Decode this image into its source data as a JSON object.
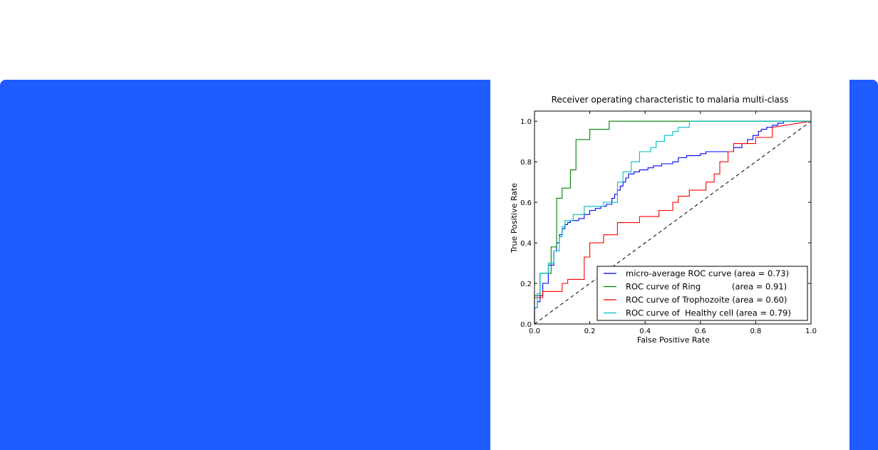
{
  "chart_data": {
    "type": "line",
    "title": "Receiver operating characteristic to malaria multi-class",
    "xlabel": "False Positive Rate",
    "ylabel": "True Positive Rate",
    "xlim": [
      0.0,
      1.0
    ],
    "ylim": [
      0.0,
      1.05
    ],
    "xticks": [
      "0.0",
      "0.2",
      "0.4",
      "0.6",
      "0.8",
      "1.0"
    ],
    "yticks": [
      "0.0",
      "0.2",
      "0.4",
      "0.6",
      "0.8",
      "1.0"
    ],
    "legend_position": "lower-right",
    "series": [
      {
        "name": "micro-average ROC curve (area = 0.73)",
        "color": "#0000ff",
        "x": [
          0.0,
          0.0,
          0.01,
          0.01,
          0.02,
          0.02,
          0.03,
          0.03,
          0.05,
          0.05,
          0.07,
          0.07,
          0.08,
          0.08,
          0.09,
          0.09,
          0.1,
          0.1,
          0.11,
          0.11,
          0.12,
          0.12,
          0.13,
          0.13,
          0.16,
          0.16,
          0.18,
          0.18,
          0.2,
          0.2,
          0.22,
          0.22,
          0.24,
          0.24,
          0.26,
          0.26,
          0.28,
          0.28,
          0.29,
          0.29,
          0.3,
          0.3,
          0.31,
          0.31,
          0.32,
          0.32,
          0.33,
          0.33,
          0.34,
          0.34,
          0.36,
          0.36,
          0.38,
          0.38,
          0.41,
          0.41,
          0.43,
          0.43,
          0.46,
          0.46,
          0.5,
          0.5,
          0.52,
          0.52,
          0.55,
          0.55,
          0.6,
          0.6,
          0.62,
          0.62,
          0.72,
          0.72,
          0.75,
          0.75,
          0.77,
          0.77,
          0.79,
          0.79,
          0.81,
          0.81,
          0.82,
          0.82,
          0.84,
          0.84,
          0.86,
          0.86,
          0.88,
          0.88,
          0.9,
          0.9,
          0.94,
          0.94,
          1.0
        ],
        "y": [
          0.0,
          0.08,
          0.08,
          0.11,
          0.11,
          0.14,
          0.14,
          0.2,
          0.2,
          0.29,
          0.29,
          0.36,
          0.36,
          0.4,
          0.4,
          0.44,
          0.44,
          0.47,
          0.47,
          0.49,
          0.49,
          0.5,
          0.5,
          0.51,
          0.51,
          0.52,
          0.52,
          0.54,
          0.54,
          0.56,
          0.56,
          0.57,
          0.57,
          0.58,
          0.58,
          0.59,
          0.59,
          0.62,
          0.62,
          0.64,
          0.64,
          0.66,
          0.66,
          0.68,
          0.68,
          0.7,
          0.7,
          0.72,
          0.72,
          0.74,
          0.74,
          0.75,
          0.75,
          0.76,
          0.76,
          0.77,
          0.77,
          0.78,
          0.78,
          0.79,
          0.79,
          0.8,
          0.8,
          0.82,
          0.82,
          0.83,
          0.83,
          0.84,
          0.84,
          0.85,
          0.85,
          0.87,
          0.87,
          0.89,
          0.89,
          0.91,
          0.91,
          0.93,
          0.93,
          0.95,
          0.95,
          0.96,
          0.96,
          0.97,
          0.97,
          0.98,
          0.98,
          0.99,
          0.99,
          1.0,
          1.0,
          1.0,
          1.0
        ]
      },
      {
        "name": "ROC curve of Ring            (area = 0.91)",
        "color": "#008000",
        "x": [
          0.0,
          0.0,
          0.02,
          0.02,
          0.06,
          0.06,
          0.08,
          0.08,
          0.1,
          0.1,
          0.13,
          0.13,
          0.15,
          0.15,
          0.2,
          0.2,
          0.27,
          0.27,
          1.0
        ],
        "y": [
          0.0,
          0.14,
          0.14,
          0.25,
          0.25,
          0.38,
          0.38,
          0.62,
          0.62,
          0.67,
          0.67,
          0.76,
          0.76,
          0.91,
          0.91,
          0.96,
          0.96,
          1.0,
          1.0
        ]
      },
      {
        "name": "ROC curve of Trophozoite (area = 0.60)",
        "color": "#ff0000",
        "x": [
          0.0,
          0.0,
          0.03,
          0.03,
          0.1,
          0.1,
          0.12,
          0.12,
          0.18,
          0.18,
          0.2,
          0.2,
          0.25,
          0.25,
          0.3,
          0.3,
          0.38,
          0.38,
          0.45,
          0.45,
          0.5,
          0.5,
          0.52,
          0.52,
          0.56,
          0.56,
          0.62,
          0.62,
          0.65,
          0.65,
          0.67,
          0.67,
          0.7,
          0.7,
          0.72,
          0.72,
          0.8,
          0.8,
          0.86,
          0.86,
          1.0
        ],
        "y": [
          0.0,
          0.13,
          0.13,
          0.16,
          0.16,
          0.2,
          0.2,
          0.22,
          0.22,
          0.33,
          0.33,
          0.4,
          0.4,
          0.44,
          0.44,
          0.5,
          0.5,
          0.53,
          0.53,
          0.56,
          0.56,
          0.6,
          0.6,
          0.63,
          0.63,
          0.66,
          0.66,
          0.7,
          0.7,
          0.74,
          0.74,
          0.8,
          0.8,
          0.85,
          0.85,
          0.89,
          0.89,
          0.92,
          0.92,
          0.97,
          1.0
        ]
      },
      {
        "name": "ROC curve of  Healthy cell (area = 0.79)",
        "color": "#00bfbf",
        "x": [
          0.0,
          0.0,
          0.01,
          0.01,
          0.02,
          0.02,
          0.05,
          0.05,
          0.07,
          0.07,
          0.09,
          0.09,
          0.1,
          0.1,
          0.11,
          0.11,
          0.14,
          0.14,
          0.18,
          0.18,
          0.25,
          0.25,
          0.3,
          0.3,
          0.32,
          0.32,
          0.35,
          0.35,
          0.38,
          0.38,
          0.42,
          0.42,
          0.44,
          0.44,
          0.47,
          0.47,
          0.5,
          0.5,
          0.52,
          0.52,
          0.56,
          0.56,
          1.0
        ],
        "y": [
          0.0,
          0.08,
          0.08,
          0.15,
          0.15,
          0.25,
          0.25,
          0.3,
          0.3,
          0.36,
          0.36,
          0.43,
          0.43,
          0.48,
          0.48,
          0.51,
          0.51,
          0.54,
          0.54,
          0.58,
          0.58,
          0.6,
          0.6,
          0.7,
          0.7,
          0.75,
          0.75,
          0.8,
          0.8,
          0.85,
          0.85,
          0.87,
          0.87,
          0.9,
          0.9,
          0.93,
          0.93,
          0.95,
          0.95,
          0.97,
          0.97,
          1.0,
          1.0
        ]
      }
    ],
    "reference_line": {
      "x": [
        0.0,
        1.0
      ],
      "y": [
        0.0,
        1.0
      ],
      "color": "#000000",
      "style": "dashed"
    }
  }
}
